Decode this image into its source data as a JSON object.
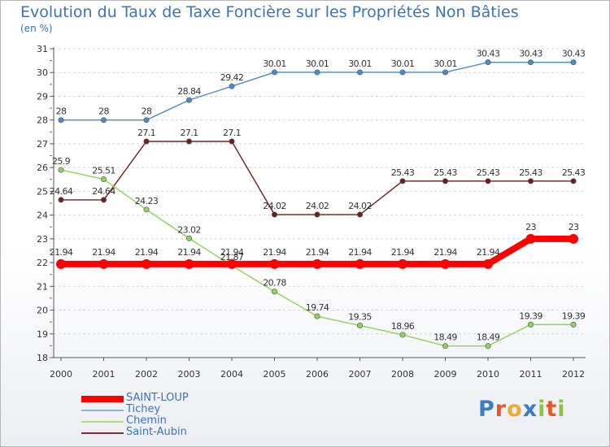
{
  "page": {
    "title": "Evolution du Taux de Taxe Foncière sur les Propriétés Non Bâties",
    "unit": "(en %)",
    "logo_text": "Proxiti"
  },
  "chart_data": {
    "type": "line",
    "title": "Evolution du Taux de Taxe Foncière sur les Propriétés Non Bâties",
    "ylabel": "(en %)",
    "xlabel": "",
    "ylim": [
      18,
      31
    ],
    "y_ticks": [
      18,
      19,
      20,
      21,
      22,
      23,
      24,
      25,
      26,
      27,
      28,
      29,
      30,
      31
    ],
    "x": [
      "2000",
      "2001",
      "2002",
      "2003",
      "2004",
      "2005",
      "2006",
      "2007",
      "2008",
      "2009",
      "2010",
      "2011",
      "2012"
    ],
    "grid": "horizontal",
    "legend_position": "bottom-left",
    "series": [
      {
        "name": "Tichey",
        "color": "#4a8cc8",
        "values": [
          28,
          28,
          28,
          28.84,
          29.42,
          30.01,
          30.01,
          30.01,
          30.01,
          30.01,
          30.43,
          30.43,
          30.43
        ],
        "labels": [
          "28",
          "28",
          "28",
          "28.84",
          "29.42",
          "30.01",
          "30.01",
          "30.01",
          "30.01",
          "30.01",
          "30.43",
          "30.43",
          "30.43"
        ]
      },
      {
        "name": "Saint-Aubin",
        "color": "#6b2020",
        "values": [
          24.64,
          24.64,
          27.1,
          27.1,
          27.1,
          24.02,
          24.02,
          24.02,
          25.43,
          25.43,
          25.43,
          25.43,
          25.43
        ],
        "labels": [
          "24.64",
          "24.64",
          "27.1",
          "27.1",
          "27.1",
          "24.02",
          "24.02",
          "24.02",
          "25.43",
          "25.43",
          "25.43",
          "25.43",
          "25.43"
        ]
      },
      {
        "name": "Chemin",
        "color": "#8cd45a",
        "values": [
          25.9,
          25.51,
          24.23,
          23.02,
          21.87,
          20.78,
          19.74,
          19.35,
          18.96,
          18.49,
          18.49,
          19.39,
          19.39
        ],
        "labels": [
          "25.9",
          "25.51",
          "24.23",
          "23.02",
          "21.87",
          "20.78",
          "19.74",
          "19.35",
          "18.96",
          "18.49",
          "18.49",
          "19.39",
          "19.39"
        ]
      },
      {
        "name": "SAINT-LOUP",
        "color": "#ff0000",
        "values": [
          21.94,
          21.94,
          21.94,
          21.94,
          21.94,
          21.94,
          21.94,
          21.94,
          21.94,
          21.94,
          21.94,
          23,
          23
        ],
        "labels": [
          "21.94",
          "21.94",
          "21.94",
          "21.94",
          "21.94",
          "21.94",
          "21.94",
          "21.94",
          "21.94",
          "21.94",
          "21.94",
          "23",
          "23"
        ]
      }
    ],
    "legend": [
      {
        "name": "SAINT-LOUP",
        "color": "#ff0000"
      },
      {
        "name": "Tichey",
        "color": "#8ab4dc"
      },
      {
        "name": "Chemin",
        "color": "#a8dc78"
      },
      {
        "name": "Saint-Aubin",
        "color": "#7a3030"
      }
    ]
  }
}
